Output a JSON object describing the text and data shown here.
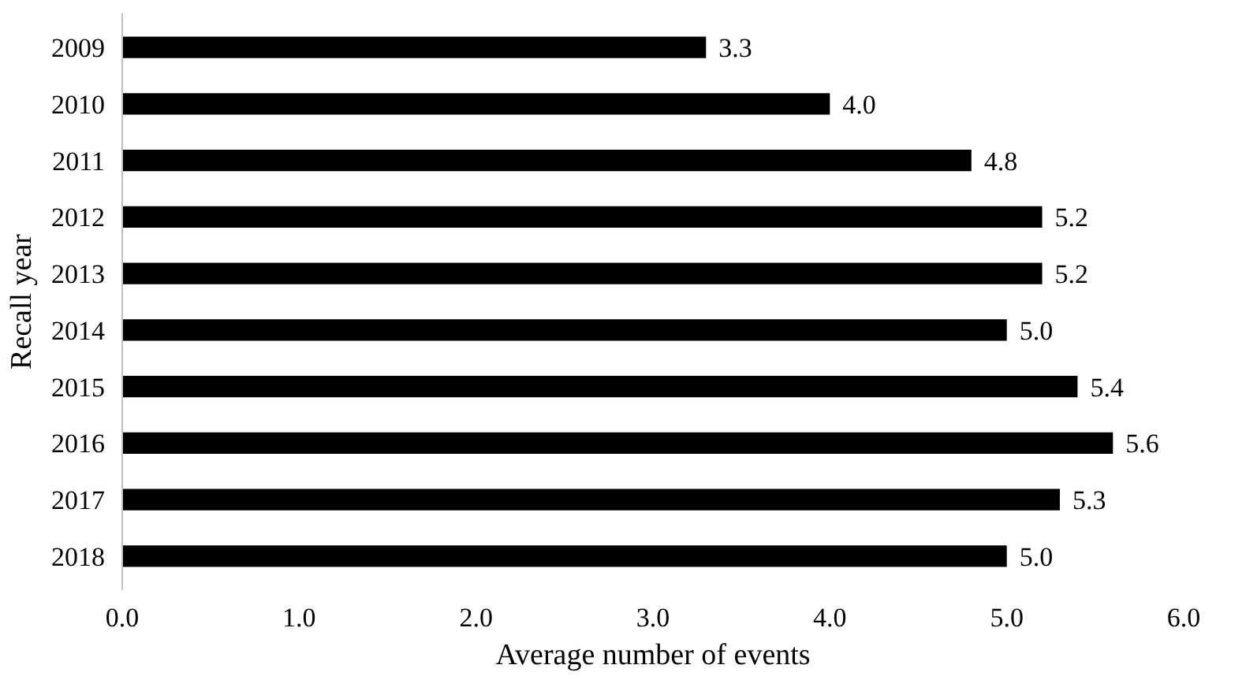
{
  "chart_data": {
    "type": "bar",
    "orientation": "horizontal",
    "xlabel": "Average number of events",
    "ylabel": "Recall year",
    "categories": [
      "2009",
      "2010",
      "2011",
      "2012",
      "2013",
      "2014",
      "2015",
      "2016",
      "2017",
      "2018"
    ],
    "values": [
      3.3,
      4.0,
      4.8,
      5.2,
      5.2,
      5.0,
      5.4,
      5.6,
      5.3,
      5.0
    ],
    "value_labels": [
      "3.3",
      "4.0",
      "4.8",
      "5.2",
      "5.2",
      "5.0",
      "5.4",
      "5.6",
      "5.3",
      "5.0"
    ],
    "color": "#000000",
    "xlim": [
      0,
      6
    ],
    "xticks": [
      {
        "value": 0,
        "label": "0.0"
      },
      {
        "value": 1,
        "label": "1.0"
      },
      {
        "value": 2,
        "label": "2.0"
      },
      {
        "value": 3,
        "label": "3.0"
      },
      {
        "value": 4,
        "label": "4.0"
      },
      {
        "value": 5,
        "label": "5.0"
      },
      {
        "value": 6,
        "label": "6.0"
      }
    ],
    "grid": false
  }
}
